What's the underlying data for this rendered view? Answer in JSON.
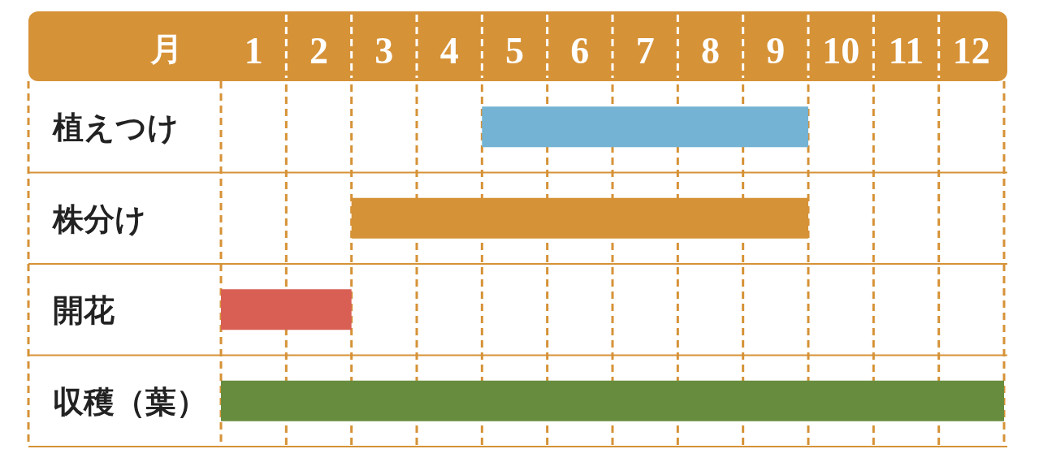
{
  "chart_data": {
    "type": "bar",
    "orientation": "horizontal",
    "xlabel": "月",
    "categories": [
      "植えつけ",
      "株分け",
      "開花",
      "収穫（葉）"
    ],
    "base": [
      4.5,
      2.5,
      0.5,
      0.5
    ],
    "values": [
      5,
      7,
      2,
      12
    ],
    "colors": [
      "#74b3d3",
      "#d69237",
      "#d95f55",
      "#678c3e"
    ],
    "xlim": [
      0.5,
      12.5
    ],
    "grid": true,
    "xticks": [
      {
        "value": 0.5,
        "label": null
      },
      1,
      {
        "value": 1.5,
        "label": null
      },
      2,
      {
        "value": 2.5,
        "label": null
      },
      3,
      {
        "value": 3.5,
        "label": null
      },
      4,
      {
        "value": 4.5,
        "label": null
      },
      5,
      {
        "value": 5.5,
        "label": null
      },
      6,
      {
        "value": 6.5,
        "label": null
      },
      7,
      {
        "value": 7.5,
        "label": null
      },
      8,
      {
        "value": 8.5,
        "label": null
      },
      9,
      {
        "value": 9.5,
        "label": null
      },
      10,
      {
        "value": 10.5,
        "label": null
      },
      11,
      {
        "value": 11.5,
        "label": null
      },
      12,
      {
        "value": 12.5,
        "label": null
      }
    ]
  }
}
